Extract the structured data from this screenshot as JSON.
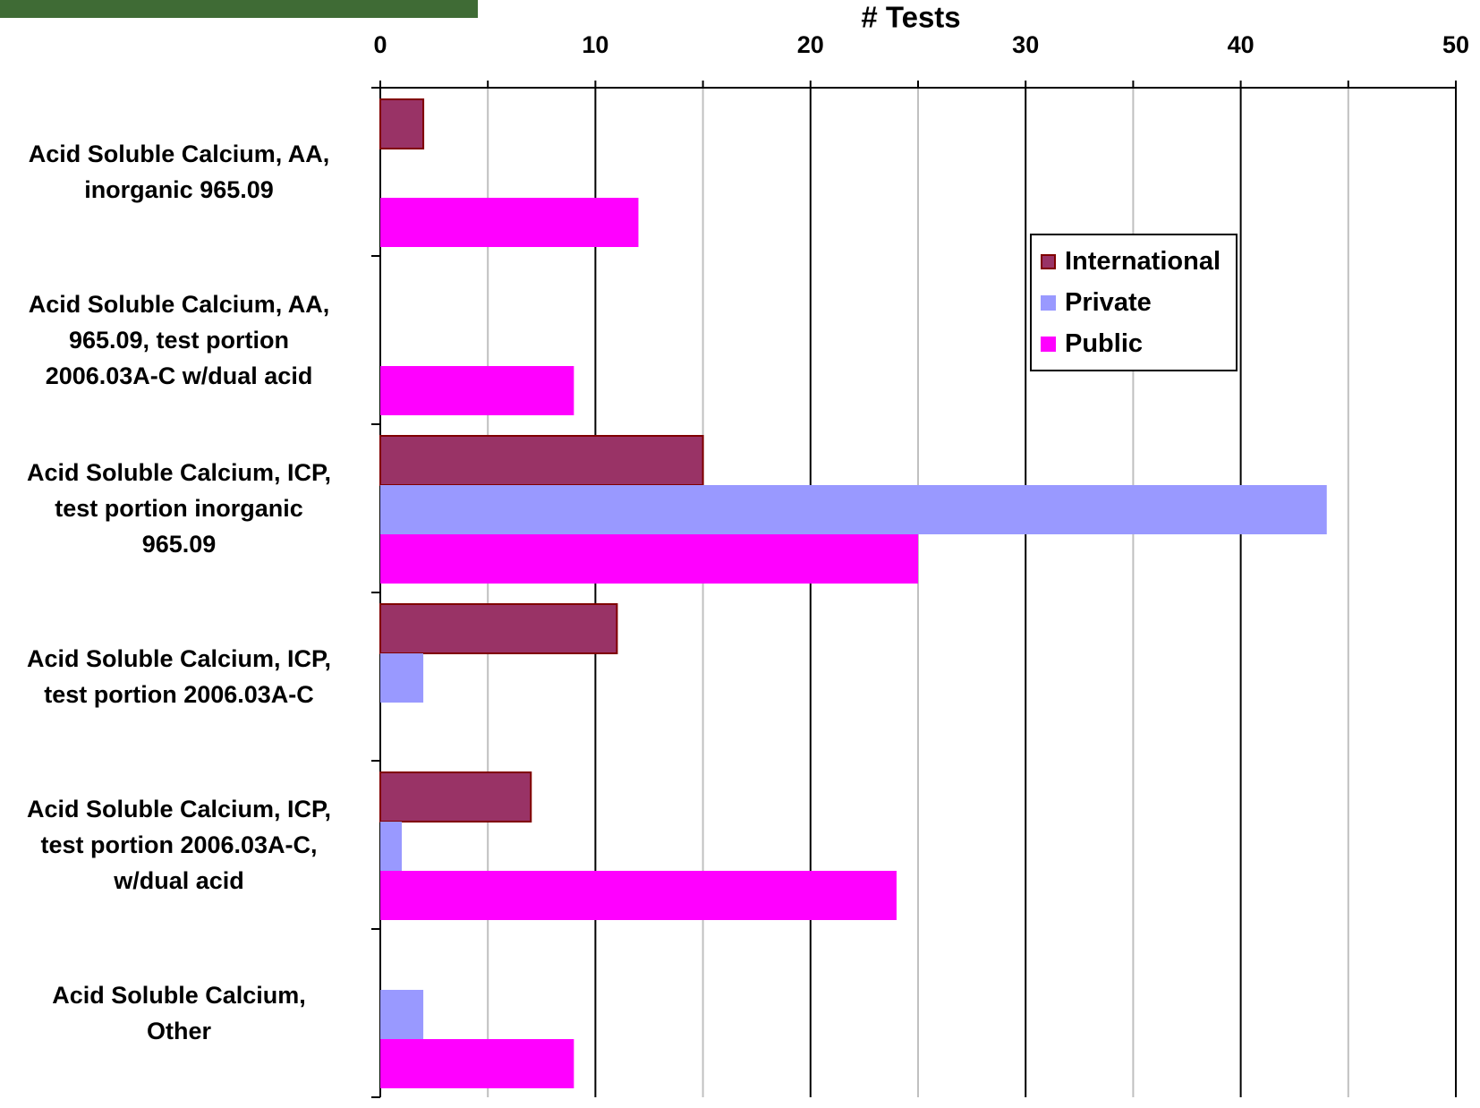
{
  "chart_data": {
    "type": "hbar",
    "title": "# Tests",
    "categories": [
      "Acid Soluble Calcium, AA,\ninorganic 965.09",
      "Acid Soluble Calcium, AA,\n965.09, test portion\n2006.03A-C w/dual acid",
      "Acid Soluble Calcium, ICP,\ntest portion inorganic\n965.09",
      "Acid Soluble Calcium, ICP,\ntest portion 2006.03A-C",
      "Acid Soluble Calcium, ICP,\ntest portion 2006.03A-C,\nw/dual acid",
      "Acid Soluble Calcium,\nOther"
    ],
    "series": [
      {
        "name": "International",
        "color": "#993366",
        "values": [
          2,
          null,
          15,
          11,
          7,
          null
        ]
      },
      {
        "name": "Private",
        "color": "#9999ff",
        "values": [
          null,
          null,
          44,
          2,
          1,
          2
        ]
      },
      {
        "name": "Public",
        "color": "#ff00ff",
        "values": [
          12,
          9,
          25,
          null,
          24,
          9
        ]
      }
    ],
    "xlim": [
      0,
      50
    ],
    "xticks": [
      0,
      10,
      20,
      30,
      40,
      50
    ],
    "xminor": [
      5,
      15,
      25,
      35,
      45
    ],
    "grid": true,
    "legend": "right"
  }
}
